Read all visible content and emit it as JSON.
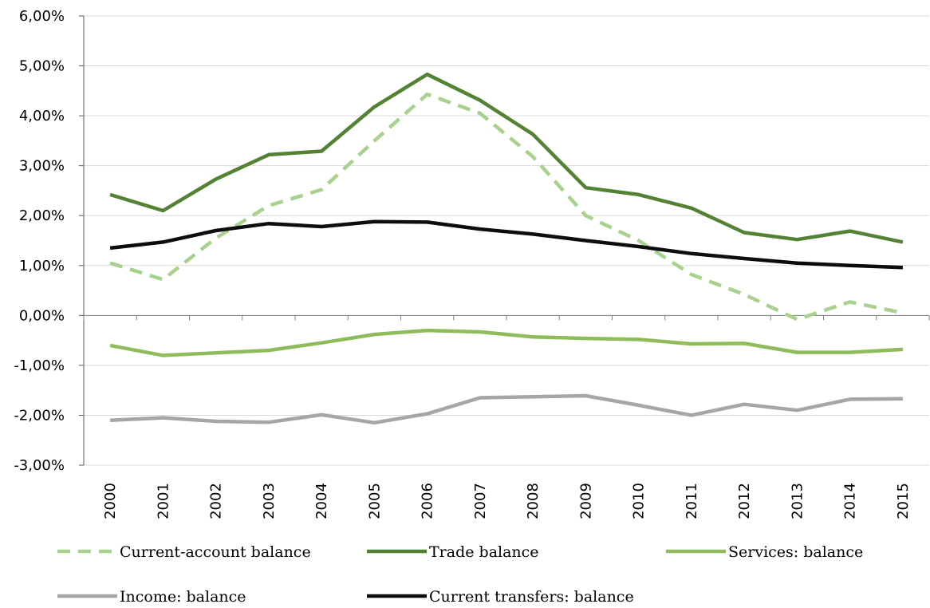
{
  "chart_data": {
    "type": "line",
    "title": "",
    "xlabel": "",
    "ylabel": "",
    "x": [
      "2000",
      "2001",
      "2002",
      "2003",
      "2004",
      "2005",
      "2006",
      "2007",
      "2008",
      "2009",
      "2010",
      "2011",
      "2012",
      "2013",
      "2014",
      "2015"
    ],
    "ylim": [
      -3,
      6
    ],
    "yticks": [
      -3,
      -2,
      -1,
      0,
      1,
      2,
      3,
      4,
      5,
      6
    ],
    "ytick_labels": [
      "-3,00%",
      "-2,00%",
      "-1,00%",
      "0,00%",
      "1,00%",
      "2,00%",
      "3,00%",
      "4,00%",
      "5,00%",
      "6,00%"
    ],
    "grid": "horizontal",
    "legend_position": "bottom",
    "series": [
      {
        "name": "Current-account balance",
        "color": "#a9d18e",
        "style": "dashed",
        "values": [
          1.05,
          0.72,
          1.55,
          2.2,
          2.52,
          3.5,
          4.43,
          4.05,
          3.18,
          2.0,
          1.5,
          0.82,
          0.42,
          -0.08,
          0.27,
          0.05
        ]
      },
      {
        "name": "Trade balance",
        "color": "#548235",
        "style": "solid",
        "values": [
          2.42,
          2.1,
          2.73,
          3.22,
          3.29,
          4.18,
          4.83,
          4.31,
          3.63,
          2.56,
          2.42,
          2.15,
          1.66,
          1.52,
          1.69,
          1.47
        ]
      },
      {
        "name": "Services: balance",
        "color": "#8fbc5a",
        "style": "solid",
        "values": [
          -0.6,
          -0.8,
          -0.75,
          -0.7,
          -0.55,
          -0.38,
          -0.3,
          -0.33,
          -0.43,
          -0.46,
          -0.48,
          -0.57,
          -0.56,
          -0.74,
          -0.74,
          -0.68
        ]
      },
      {
        "name": "Income: balance",
        "color": "#a6a6a6",
        "style": "solid",
        "values": [
          -2.1,
          -2.05,
          -2.12,
          -2.14,
          -1.99,
          -2.15,
          -1.97,
          -1.65,
          -1.63,
          -1.61,
          -1.8,
          -2.0,
          -1.78,
          -1.9,
          -1.68,
          -1.67
        ]
      },
      {
        "name": "Current transfers: balance",
        "color": "#0d0d0d",
        "style": "solid",
        "values": [
          1.35,
          1.47,
          1.7,
          1.84,
          1.78,
          1.88,
          1.87,
          1.73,
          1.63,
          1.5,
          1.38,
          1.24,
          1.14,
          1.05,
          1.0,
          0.96
        ]
      }
    ]
  }
}
